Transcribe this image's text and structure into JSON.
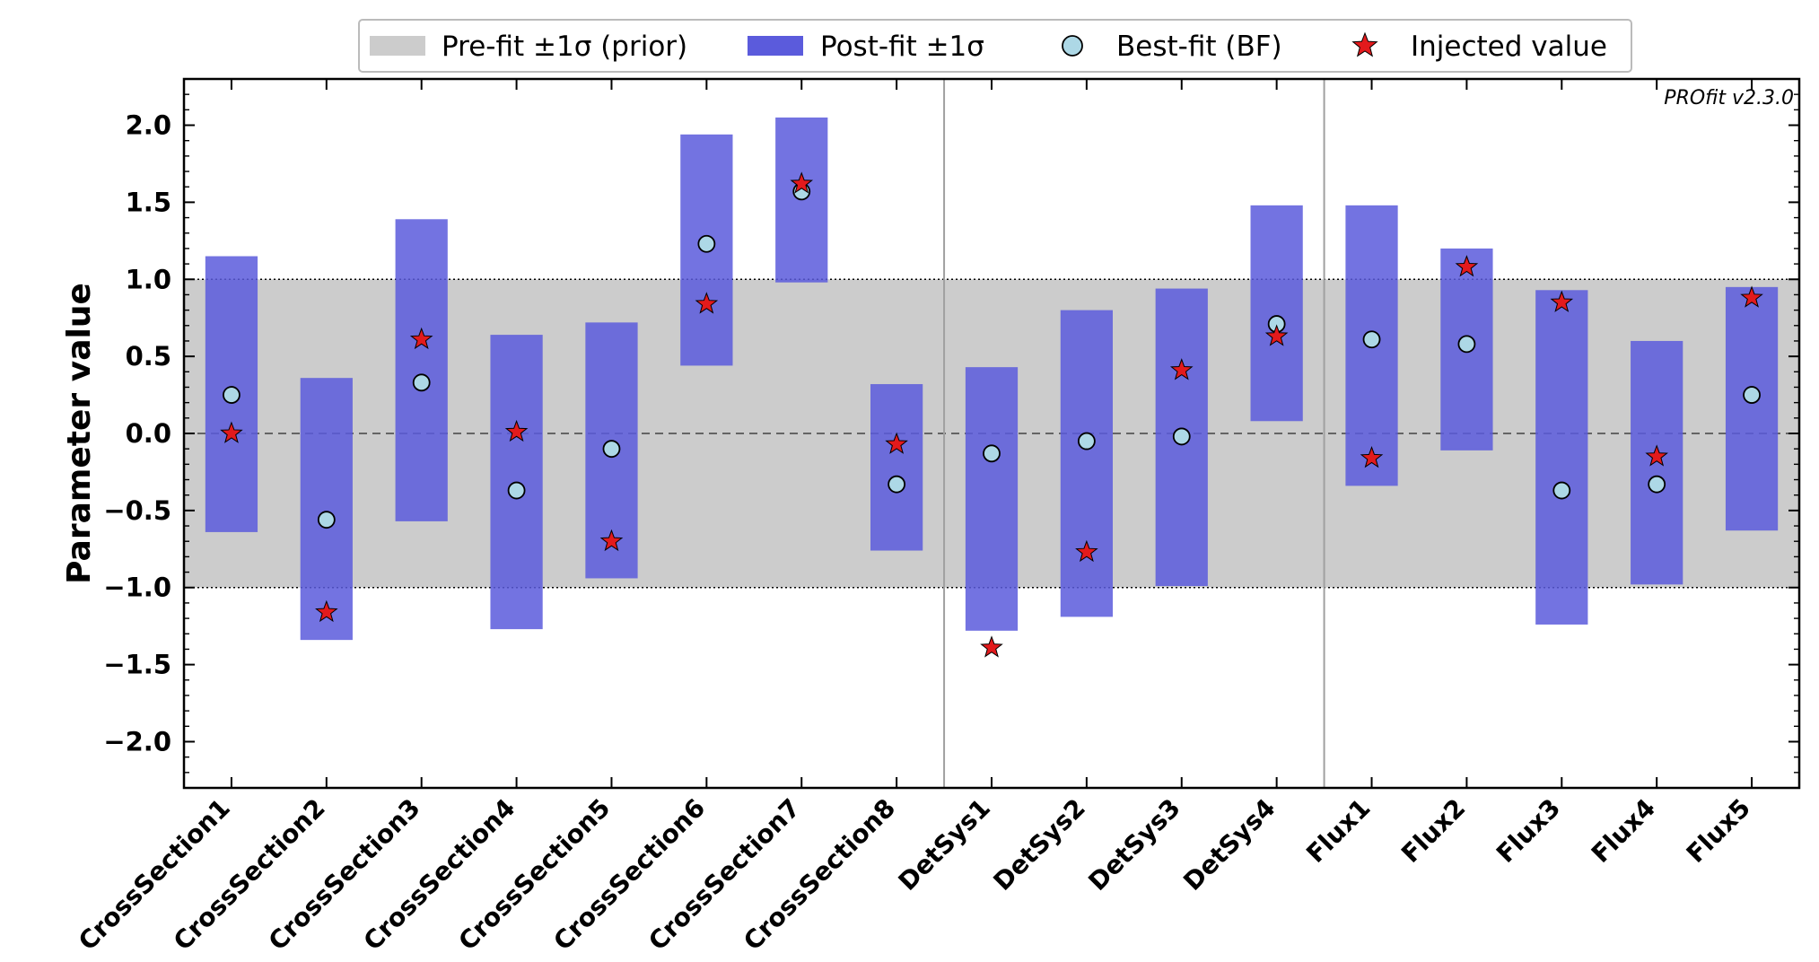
{
  "chart_data": {
    "type": "scatter",
    "ylabel": "Parameter value",
    "watermark": "PROfit v2.3.0",
    "ylim": [
      -2.3,
      2.3
    ],
    "yticks": [
      -2.0,
      -1.5,
      -1.0,
      -0.5,
      0.0,
      0.5,
      1.0,
      1.5,
      2.0
    ],
    "ytick_labels": [
      "−2.0",
      "−1.5",
      "−1.0",
      "−0.5",
      "0.0",
      "0.5",
      "1.0",
      "1.5",
      "2.0"
    ],
    "grid": false,
    "legend_position": "top-center, above plot",
    "prior_band": {
      "low": -1.0,
      "high": 1.0
    },
    "group_separators_after": [
      "CrossSection8",
      "DetSys4"
    ],
    "categories": [
      "CrossSection1",
      "CrossSection2",
      "CrossSection3",
      "CrossSection4",
      "CrossSection5",
      "CrossSection6",
      "CrossSection7",
      "CrossSection8",
      "DetSys1",
      "DetSys2",
      "DetSys3",
      "DetSys4",
      "Flux1",
      "Flux2",
      "Flux3",
      "Flux4",
      "Flux5"
    ],
    "series": [
      {
        "name": "Pre-fit ±1σ (prior)",
        "kind": "band",
        "color": "#cccccc",
        "low": [
          -1,
          -1,
          -1,
          -1,
          -1,
          -1,
          -1,
          -1,
          -1,
          -1,
          -1,
          -1,
          -1,
          -1,
          -1,
          -1,
          -1
        ],
        "high": [
          1,
          1,
          1,
          1,
          1,
          1,
          1,
          1,
          1,
          1,
          1,
          1,
          1,
          1,
          1,
          1,
          1
        ]
      },
      {
        "name": "Post-fit ±1σ",
        "kind": "interval",
        "color": "#5b5bdc",
        "low": [
          -0.64,
          -1.34,
          -0.57,
          -1.27,
          -0.94,
          0.44,
          0.98,
          -0.76,
          -1.28,
          -1.19,
          -0.99,
          0.08,
          -0.34,
          -0.11,
          -1.24,
          -0.98,
          -0.63
        ],
        "high": [
          1.15,
          0.36,
          1.39,
          0.64,
          0.72,
          1.94,
          2.05,
          0.32,
          0.43,
          0.8,
          0.94,
          1.48,
          1.48,
          1.2,
          0.93,
          0.6,
          0.95
        ]
      },
      {
        "name": "Best-fit (BF)",
        "kind": "point",
        "color": "#add8e6",
        "values": [
          0.25,
          -0.56,
          0.33,
          -0.37,
          -0.1,
          1.23,
          1.57,
          -0.33,
          -0.13,
          -0.05,
          -0.02,
          0.71,
          0.61,
          0.58,
          -0.37,
          -0.33,
          0.25
        ]
      },
      {
        "name": "Injected value",
        "kind": "star",
        "color": "#e31a1c",
        "values": [
          0.0,
          -1.16,
          0.61,
          0.01,
          -0.7,
          0.84,
          1.62,
          -0.07,
          -1.39,
          -0.77,
          0.41,
          0.63,
          -0.16,
          1.08,
          0.85,
          -0.15,
          0.88
        ]
      }
    ]
  }
}
